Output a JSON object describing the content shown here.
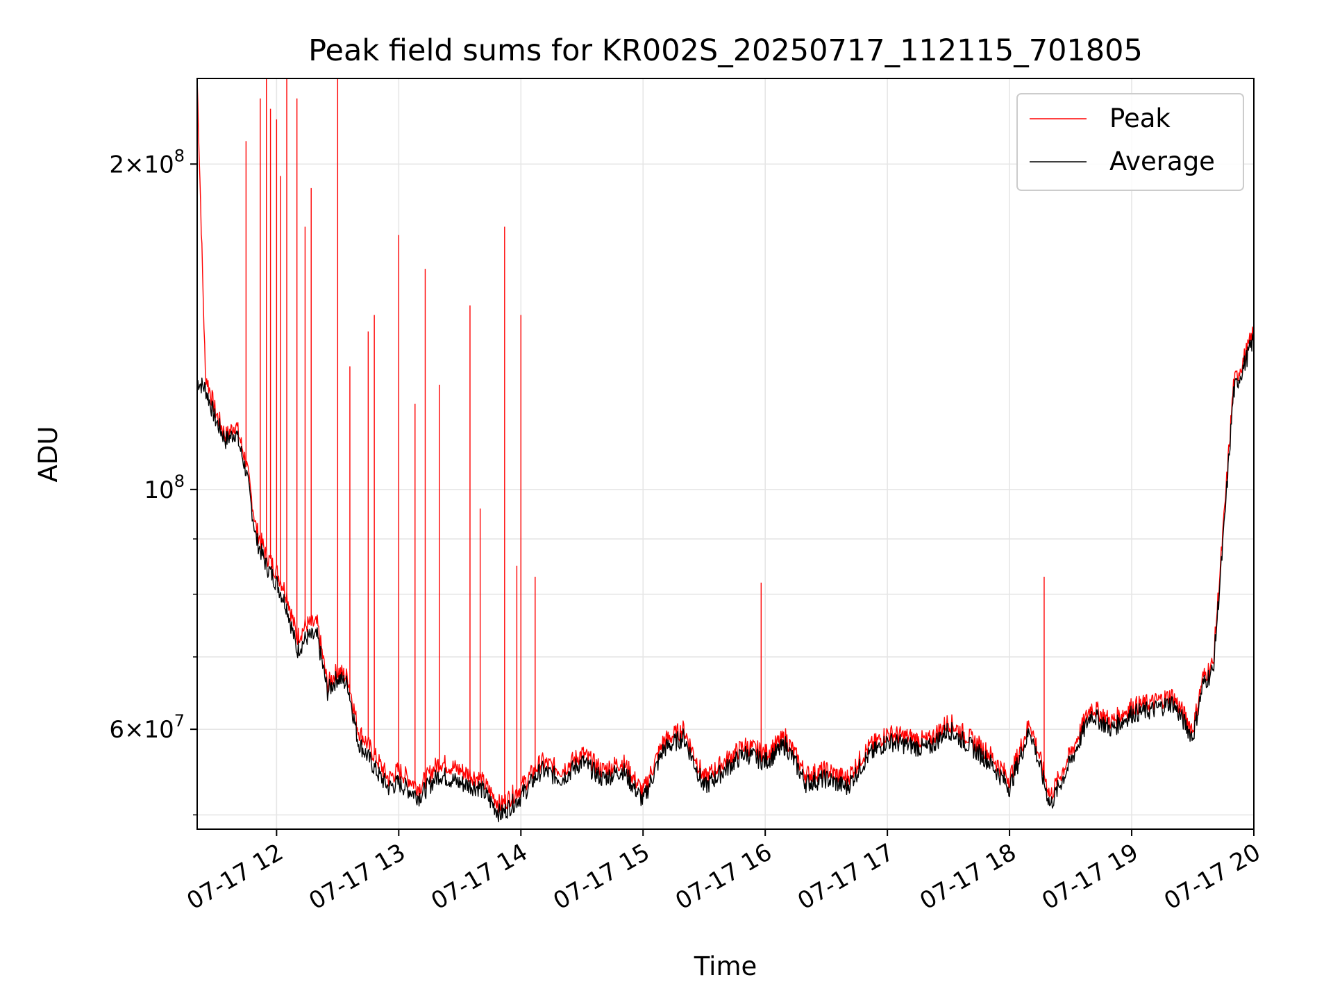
{
  "chart_data": {
    "type": "line",
    "title": "Peak field sums for KR002S_20250717_112115_701805",
    "xlabel": "Time",
    "ylabel": "ADU",
    "yscale": "log",
    "ylim": [
      48500000,
      240000000
    ],
    "xlim": [
      "2025-07-17 11:21",
      "2025-07-17 20:00"
    ],
    "grid": true,
    "legend_position": "upper right",
    "x_ticks": [
      {
        "time": "2025-07-17 12:00",
        "label": "07-17 12"
      },
      {
        "time": "2025-07-17 13:00",
        "label": "07-17 13"
      },
      {
        "time": "2025-07-17 14:00",
        "label": "07-17 14"
      },
      {
        "time": "2025-07-17 15:00",
        "label": "07-17 15"
      },
      {
        "time": "2025-07-17 16:00",
        "label": "07-17 16"
      },
      {
        "time": "2025-07-17 17:00",
        "label": "07-17 17"
      },
      {
        "time": "2025-07-17 18:00",
        "label": "07-17 18"
      },
      {
        "time": "2025-07-17 19:00",
        "label": "07-17 19"
      },
      {
        "time": "2025-07-17 20:00",
        "label": "07-17 20"
      }
    ],
    "y_major_ticks": [
      {
        "value": 60000000,
        "mantissa": "6",
        "exp": "7"
      },
      {
        "value": 100000000,
        "mantissa": "",
        "exp": "8"
      },
      {
        "value": 200000000,
        "mantissa": "2",
        "exp": "8"
      }
    ],
    "y_minor_ticks": [
      50000000,
      70000000,
      80000000,
      90000000
    ],
    "series": [
      {
        "name": "Peak",
        "color": "#ff0000",
        "x": [
          "2025-07-17 11:21",
          "2025-07-17 11:25",
          "2025-07-17 11:30",
          "2025-07-17 11:35",
          "2025-07-17 11:40",
          "2025-07-17 11:45",
          "2025-07-17 11:50",
          "2025-07-17 11:55",
          "2025-07-17 12:00",
          "2025-07-17 12:05",
          "2025-07-17 12:10",
          "2025-07-17 12:15",
          "2025-07-17 12:20",
          "2025-07-17 12:25",
          "2025-07-17 12:30",
          "2025-07-17 12:35",
          "2025-07-17 12:40",
          "2025-07-17 12:45",
          "2025-07-17 12:50",
          "2025-07-17 12:55",
          "2025-07-17 13:00",
          "2025-07-17 13:10",
          "2025-07-17 13:20",
          "2025-07-17 13:30",
          "2025-07-17 13:40",
          "2025-07-17 13:50",
          "2025-07-17 14:00",
          "2025-07-17 14:10",
          "2025-07-17 14:20",
          "2025-07-17 14:30",
          "2025-07-17 14:40",
          "2025-07-17 14:50",
          "2025-07-17 15:00",
          "2025-07-17 15:10",
          "2025-07-17 15:20",
          "2025-07-17 15:30",
          "2025-07-17 15:40",
          "2025-07-17 15:50",
          "2025-07-17 16:00",
          "2025-07-17 16:10",
          "2025-07-17 16:20",
          "2025-07-17 16:30",
          "2025-07-17 16:40",
          "2025-07-17 16:50",
          "2025-07-17 17:00",
          "2025-07-17 17:10",
          "2025-07-17 17:20",
          "2025-07-17 17:30",
          "2025-07-17 17:40",
          "2025-07-17 17:50",
          "2025-07-17 18:00",
          "2025-07-17 18:10",
          "2025-07-17 18:20",
          "2025-07-17 18:30",
          "2025-07-17 18:40",
          "2025-07-17 18:50",
          "2025-07-17 19:00",
          "2025-07-17 19:10",
          "2025-07-17 19:20",
          "2025-07-17 19:30",
          "2025-07-17 19:35",
          "2025-07-17 19:40",
          "2025-07-17 19:45",
          "2025-07-17 19:50",
          "2025-07-17 19:55",
          "2025-07-17 20:00"
        ],
        "y": [
          240000000,
          128000000,
          118000000,
          112000000,
          115000000,
          106000000,
          92000000,
          87000000,
          84000000,
          80000000,
          73000000,
          75000000,
          75000000,
          66000000,
          68000000,
          67000000,
          60000000,
          58000000,
          56000000,
          54000000,
          55000000,
          53000000,
          56000000,
          55000000,
          54000000,
          51000000,
          53000000,
          56000000,
          55000000,
          57000000,
          55000000,
          56000000,
          52500000,
          58500000,
          60000000,
          54000000,
          56000000,
          58000000,
          57000000,
          59000000,
          54500000,
          55000000,
          54000000,
          57500000,
          59500000,
          59000000,
          58500000,
          61000000,
          59000000,
          57000000,
          54000000,
          61000000,
          52000000,
          57000000,
          63000000,
          61000000,
          63000000,
          63500000,
          64500000,
          60000000,
          67000000,
          69000000,
          92000000,
          125000000,
          132000000,
          140000000
        ]
      },
      {
        "name": "Average",
        "color": "#000000",
        "x": [
          "2025-07-17 11:21",
          "2025-07-17 11:25",
          "2025-07-17 11:30",
          "2025-07-17 11:35",
          "2025-07-17 11:40",
          "2025-07-17 11:45",
          "2025-07-17 11:50",
          "2025-07-17 11:55",
          "2025-07-17 12:00",
          "2025-07-17 12:05",
          "2025-07-17 12:10",
          "2025-07-17 12:15",
          "2025-07-17 12:20",
          "2025-07-17 12:25",
          "2025-07-17 12:30",
          "2025-07-17 12:35",
          "2025-07-17 12:40",
          "2025-07-17 12:45",
          "2025-07-17 12:50",
          "2025-07-17 12:55",
          "2025-07-17 13:00",
          "2025-07-17 13:10",
          "2025-07-17 13:20",
          "2025-07-17 13:30",
          "2025-07-17 13:40",
          "2025-07-17 13:50",
          "2025-07-17 14:00",
          "2025-07-17 14:10",
          "2025-07-17 14:20",
          "2025-07-17 14:30",
          "2025-07-17 14:40",
          "2025-07-17 14:50",
          "2025-07-17 15:00",
          "2025-07-17 15:10",
          "2025-07-17 15:20",
          "2025-07-17 15:30",
          "2025-07-17 15:40",
          "2025-07-17 15:50",
          "2025-07-17 16:00",
          "2025-07-17 16:10",
          "2025-07-17 16:20",
          "2025-07-17 16:30",
          "2025-07-17 16:40",
          "2025-07-17 16:50",
          "2025-07-17 17:00",
          "2025-07-17 17:10",
          "2025-07-17 17:20",
          "2025-07-17 17:30",
          "2025-07-17 17:40",
          "2025-07-17 17:50",
          "2025-07-17 18:00",
          "2025-07-17 18:10",
          "2025-07-17 18:20",
          "2025-07-17 18:30",
          "2025-07-17 18:40",
          "2025-07-17 18:50",
          "2025-07-17 19:00",
          "2025-07-17 19:10",
          "2025-07-17 19:20",
          "2025-07-17 19:30",
          "2025-07-17 19:35",
          "2025-07-17 19:40",
          "2025-07-17 19:45",
          "2025-07-17 19:50",
          "2025-07-17 19:55",
          "2025-07-17 20:00"
        ],
        "y": [
          126000000,
          124000000,
          116000000,
          111000000,
          113000000,
          104000000,
          90000000,
          85000000,
          82000000,
          78000000,
          71000000,
          73000000,
          73000000,
          65000000,
          67000000,
          66000000,
          58500000,
          56500000,
          54500000,
          53000000,
          53500000,
          52000000,
          54500000,
          53500000,
          53000000,
          50000000,
          52000000,
          55000000,
          54000000,
          56000000,
          54000000,
          55000000,
          51500000,
          57500000,
          59000000,
          53000000,
          55000000,
          57000000,
          56000000,
          58000000,
          53500000,
          54000000,
          53000000,
          56500000,
          58500000,
          58000000,
          57500000,
          60000000,
          58000000,
          56000000,
          53000000,
          60000000,
          51000000,
          56000000,
          62000000,
          60000000,
          62000000,
          62500000,
          63500000,
          59000000,
          66000000,
          68000000,
          90000000,
          123000000,
          130000000,
          138000000
        ]
      }
    ],
    "peak_spikes": {
      "x": [
        "2025-07-17 11:45",
        "2025-07-17 11:52",
        "2025-07-17 11:55",
        "2025-07-17 11:57",
        "2025-07-17 12:00",
        "2025-07-17 12:02",
        "2025-07-17 12:05",
        "2025-07-17 12:10",
        "2025-07-17 12:14",
        "2025-07-17 12:17",
        "2025-07-17 12:30",
        "2025-07-17 12:36",
        "2025-07-17 12:45",
        "2025-07-17 12:48",
        "2025-07-17 13:00",
        "2025-07-17 13:08",
        "2025-07-17 13:13",
        "2025-07-17 13:20",
        "2025-07-17 13:35",
        "2025-07-17 13:40",
        "2025-07-17 13:52",
        "2025-07-17 13:58",
        "2025-07-17 14:00",
        "2025-07-17 14:07",
        "2025-07-17 15:58",
        "2025-07-17 18:17"
      ],
      "y": [
        210000000,
        230000000,
        240000000,
        225000000,
        220000000,
        195000000,
        240000000,
        230000000,
        175000000,
        190000000,
        240000000,
        130000000,
        140000000,
        145000000,
        172000000,
        120000000,
        160000000,
        125000000,
        148000000,
        96000000,
        175000000,
        85000000,
        145000000,
        83000000,
        82000000,
        83000000
      ]
    },
    "legend": [
      "Peak",
      "Average"
    ]
  }
}
